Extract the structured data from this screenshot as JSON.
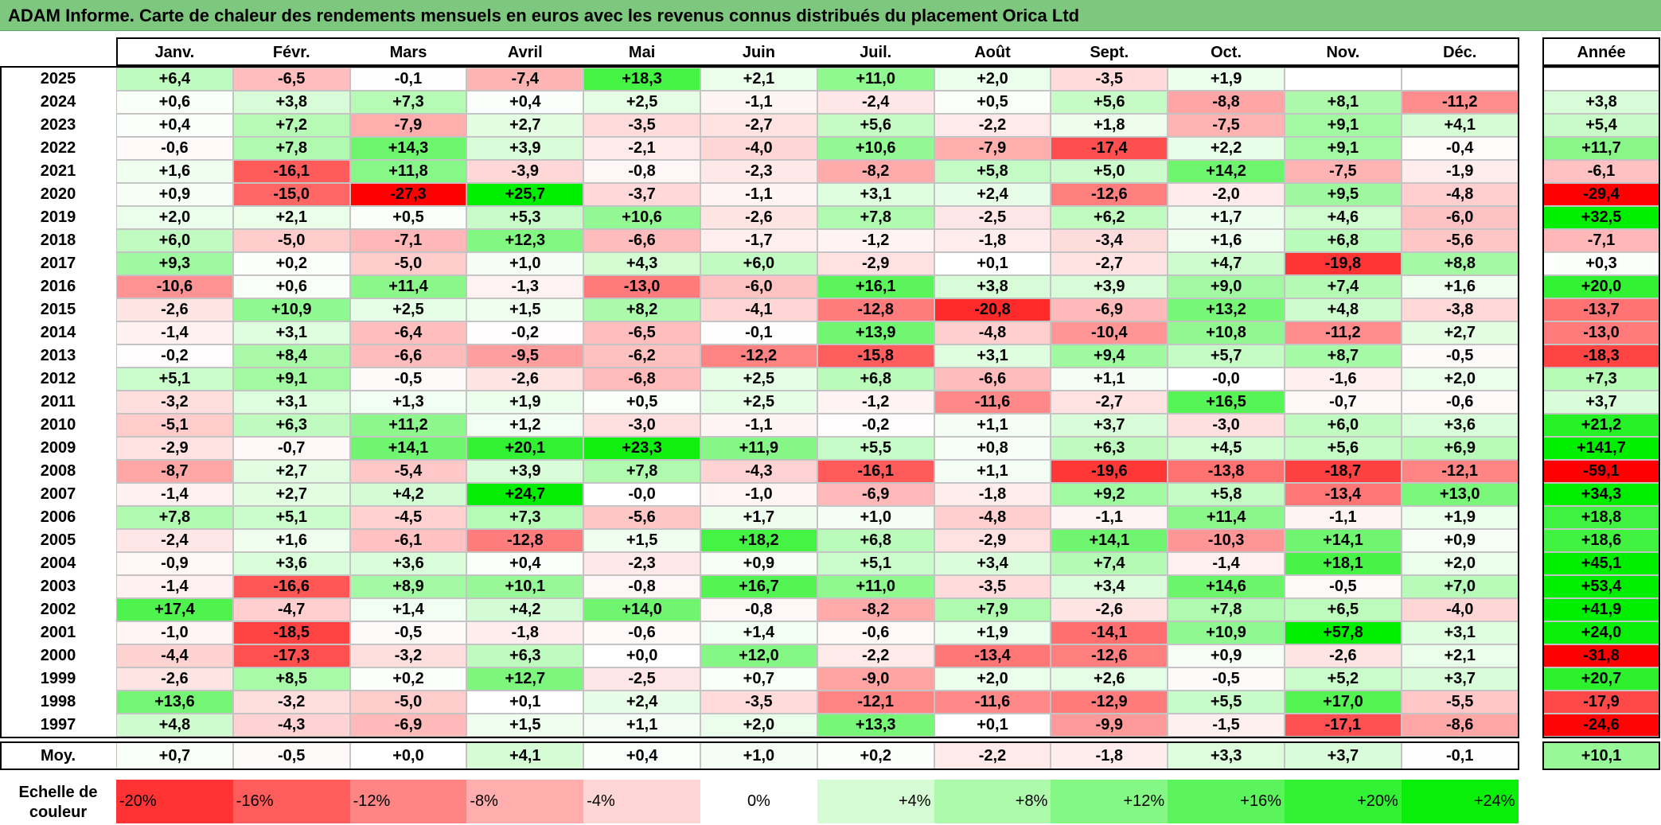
{
  "title": "ADAM Informe. Carte de chaleur des rendements mensuels en euros avec les revenus connus distribués du placement Orica Ltd",
  "chart_data": {
    "type": "heatmap",
    "title": "ADAM Informe. Carte de chaleur des rendements mensuels en euros avec les revenus connus distribués du placement Orica Ltd",
    "columns": [
      "Janv.",
      "Févr.",
      "Mars",
      "Avril",
      "Mai",
      "Juin",
      "Juil.",
      "Août",
      "Sept.",
      "Oct.",
      "Nov.",
      "Déc."
    ],
    "annual_header": "Année",
    "rows": [
      {
        "label": "2025",
        "values": [
          "+6,4",
          "-6,5",
          "-0,1",
          "-7,4",
          "+18,3",
          "+2,1",
          "+11,0",
          "+2,0",
          "-3,5",
          "+1,9",
          "",
          ""
        ],
        "annual": ""
      },
      {
        "label": "2024",
        "values": [
          "+0,6",
          "+3,8",
          "+7,3",
          "+0,4",
          "+2,5",
          "-1,1",
          "-2,4",
          "+0,5",
          "+5,6",
          "-8,8",
          "+8,1",
          "-11,2"
        ],
        "annual": "+3,8"
      },
      {
        "label": "2023",
        "values": [
          "+0,4",
          "+7,2",
          "-7,9",
          "+2,7",
          "-3,5",
          "-2,7",
          "+5,6",
          "-2,2",
          "+1,8",
          "-7,5",
          "+9,1",
          "+4,1"
        ],
        "annual": "+5,4"
      },
      {
        "label": "2022",
        "values": [
          "-0,6",
          "+7,8",
          "+14,3",
          "+3,9",
          "-2,1",
          "-4,0",
          "+10,6",
          "-7,9",
          "-17,4",
          "+2,2",
          "+9,1",
          "-0,4"
        ],
        "annual": "+11,7"
      },
      {
        "label": "2021",
        "values": [
          "+1,6",
          "-16,1",
          "+11,8",
          "-3,9",
          "-0,8",
          "-2,3",
          "-8,2",
          "+5,8",
          "+5,0",
          "+14,2",
          "-7,5",
          "-1,9"
        ],
        "annual": "-6,1"
      },
      {
        "label": "2020",
        "values": [
          "+0,9",
          "-15,0",
          "-27,3",
          "+25,7",
          "-3,7",
          "-1,1",
          "+3,1",
          "+2,4",
          "-12,6",
          "-2,0",
          "+9,5",
          "-4,8"
        ],
        "annual": "-29,4"
      },
      {
        "label": "2019",
        "values": [
          "+2,0",
          "+2,1",
          "+0,5",
          "+5,3",
          "+10,6",
          "-2,6",
          "+7,8",
          "-2,5",
          "+6,2",
          "+1,7",
          "+4,6",
          "-6,0"
        ],
        "annual": "+32,5"
      },
      {
        "label": "2018",
        "values": [
          "+6,0",
          "-5,0",
          "-7,1",
          "+12,3",
          "-6,6",
          "-1,7",
          "-1,2",
          "-1,8",
          "-3,4",
          "+1,6",
          "+6,8",
          "-5,6"
        ],
        "annual": "-7,1"
      },
      {
        "label": "2017",
        "values": [
          "+9,3",
          "+0,2",
          "-5,0",
          "+1,0",
          "+4,3",
          "+6,0",
          "-2,9",
          "+0,1",
          "-2,7",
          "+4,7",
          "-19,8",
          "+8,8"
        ],
        "annual": "+0,3"
      },
      {
        "label": "2016",
        "values": [
          "-10,6",
          "+0,6",
          "+11,4",
          "-1,3",
          "-13,0",
          "-6,0",
          "+16,1",
          "+3,8",
          "+3,9",
          "+9,0",
          "+7,4",
          "+1,6"
        ],
        "annual": "+20,0"
      },
      {
        "label": "2015",
        "values": [
          "-2,6",
          "+10,9",
          "+2,5",
          "+1,5",
          "+8,2",
          "-4,1",
          "-12,8",
          "-20,8",
          "-6,9",
          "+13,2",
          "+4,8",
          "-3,8"
        ],
        "annual": "-13,7"
      },
      {
        "label": "2014",
        "values": [
          "-1,4",
          "+3,1",
          "-6,4",
          "-0,2",
          "-6,5",
          "-0,1",
          "+13,9",
          "-4,8",
          "-10,4",
          "+10,8",
          "-11,2",
          "+2,7"
        ],
        "annual": "-13,0"
      },
      {
        "label": "2013",
        "values": [
          "-0,2",
          "+8,4",
          "-6,6",
          "-9,5",
          "-6,2",
          "-12,2",
          "-15,8",
          "+3,1",
          "+9,4",
          "+5,7",
          "+8,7",
          "-0,5"
        ],
        "annual": "-18,3"
      },
      {
        "label": "2012",
        "values": [
          "+5,1",
          "+9,1",
          "-0,5",
          "-2,6",
          "-6,8",
          "+2,5",
          "+6,8",
          "-6,6",
          "+1,1",
          "-0,0",
          "-1,6",
          "+2,0"
        ],
        "annual": "+7,3"
      },
      {
        "label": "2011",
        "values": [
          "-3,2",
          "+3,1",
          "+1,3",
          "+1,9",
          "+0,5",
          "+2,5",
          "-1,2",
          "-11,6",
          "-2,7",
          "+16,5",
          "-0,7",
          "-0,6"
        ],
        "annual": "+3,7"
      },
      {
        "label": "2010",
        "values": [
          "-5,1",
          "+6,3",
          "+11,2",
          "+1,2",
          "-3,0",
          "-1,1",
          "-0,2",
          "+1,1",
          "+3,7",
          "-3,0",
          "+6,0",
          "+3,6"
        ],
        "annual": "+21,2"
      },
      {
        "label": "2009",
        "values": [
          "-2,9",
          "-0,7",
          "+14,1",
          "+20,1",
          "+23,3",
          "+11,9",
          "+5,5",
          "+0,8",
          "+6,3",
          "+4,5",
          "+5,6",
          "+6,9"
        ],
        "annual": "+141,7"
      },
      {
        "label": "2008",
        "values": [
          "-8,7",
          "+2,7",
          "-5,4",
          "+3,9",
          "+7,8",
          "-4,3",
          "-16,1",
          "+1,1",
          "-19,6",
          "-13,8",
          "-18,7",
          "-12,1"
        ],
        "annual": "-59,1"
      },
      {
        "label": "2007",
        "values": [
          "-1,4",
          "+2,7",
          "+4,2",
          "+24,7",
          "-0,0",
          "-1,0",
          "-6,9",
          "-1,8",
          "+9,2",
          "+5,8",
          "-13,4",
          "+13,0"
        ],
        "annual": "+34,3"
      },
      {
        "label": "2006",
        "values": [
          "+7,8",
          "+5,1",
          "-4,5",
          "+7,3",
          "-5,6",
          "+1,7",
          "+1,0",
          "-4,8",
          "-1,1",
          "+11,4",
          "-1,1",
          "+1,9"
        ],
        "annual": "+18,8"
      },
      {
        "label": "2005",
        "values": [
          "-2,4",
          "+1,6",
          "-6,1",
          "-12,8",
          "+1,5",
          "+18,2",
          "+6,8",
          "-2,9",
          "+14,1",
          "-10,3",
          "+14,1",
          "+0,9"
        ],
        "annual": "+18,6"
      },
      {
        "label": "2004",
        "values": [
          "-0,9",
          "+3,6",
          "+3,6",
          "+0,4",
          "-2,3",
          "+0,9",
          "+5,1",
          "+3,4",
          "+7,4",
          "-1,4",
          "+18,1",
          "+2,0"
        ],
        "annual": "+45,1"
      },
      {
        "label": "2003",
        "values": [
          "-1,4",
          "-16,6",
          "+8,9",
          "+10,1",
          "-0,8",
          "+16,7",
          "+11,0",
          "-3,5",
          "+3,4",
          "+14,6",
          "-0,5",
          "+7,0"
        ],
        "annual": "+53,4"
      },
      {
        "label": "2002",
        "values": [
          "+17,4",
          "-4,7",
          "+1,4",
          "+4,2",
          "+14,0",
          "-0,8",
          "-8,2",
          "+7,9",
          "-2,6",
          "+7,8",
          "+6,5",
          "-4,0"
        ],
        "annual": "+41,9"
      },
      {
        "label": "2001",
        "values": [
          "-1,0",
          "-18,5",
          "-0,5",
          "-1,8",
          "-0,6",
          "+1,4",
          "-0,6",
          "+1,9",
          "-14,1",
          "+10,9",
          "+57,8",
          "+3,1"
        ],
        "annual": "+24,0"
      },
      {
        "label": "2000",
        "values": [
          "-4,4",
          "-17,3",
          "-3,2",
          "+6,3",
          "+0,0",
          "+12,0",
          "-2,2",
          "-13,4",
          "-12,6",
          "+0,9",
          "-2,6",
          "+2,1"
        ],
        "annual": "-31,8"
      },
      {
        "label": "1999",
        "values": [
          "-2,6",
          "+8,5",
          "+0,2",
          "+12,7",
          "-2,5",
          "+0,7",
          "-9,0",
          "+2,0",
          "+2,6",
          "-0,5",
          "+5,2",
          "+3,7"
        ],
        "annual": "+20,7"
      },
      {
        "label": "1998",
        "values": [
          "+13,6",
          "-3,2",
          "-5,0",
          "+0,1",
          "+2,4",
          "-3,5",
          "-12,1",
          "-11,6",
          "-12,9",
          "+5,5",
          "+17,0",
          "-5,5"
        ],
        "annual": "-17,9"
      },
      {
        "label": "1997",
        "values": [
          "+4,8",
          "-4,3",
          "-6,9",
          "+1,5",
          "+1,1",
          "+2,0",
          "+13,3",
          "+0,1",
          "-9,9",
          "-1,5",
          "-17,1",
          "-8,6"
        ],
        "annual": "-24,6"
      }
    ],
    "average": {
      "label": "Moy.",
      "values": [
        "+0,7",
        "-0,5",
        "+0,0",
        "+4,1",
        "+0,4",
        "+1,0",
        "+0,2",
        "-2,2",
        "-1,8",
        "+3,3",
        "+3,7",
        "-0,1"
      ],
      "annual": "+10,1"
    },
    "legend": {
      "label": "Echelle de\ncouleur",
      "steps": [
        {
          "text": "-20%",
          "value": -20
        },
        {
          "text": "-16%",
          "value": -16
        },
        {
          "text": "-12%",
          "value": -12
        },
        {
          "text": "-8%",
          "value": -8
        },
        {
          "text": "-4%",
          "value": -4
        },
        {
          "text": "0%",
          "value": 0
        },
        {
          "text": "+4%",
          "value": 4
        },
        {
          "text": "+8%",
          "value": 8
        },
        {
          "text": "+12%",
          "value": 12
        },
        {
          "text": "+16%",
          "value": 16
        },
        {
          "text": "+20%",
          "value": 20
        },
        {
          "text": "+24%",
          "value": 24
        }
      ]
    },
    "color_scale": {
      "negative_max": "#ff0000",
      "neutral": "#ffffff",
      "positive_max": "#00ee00",
      "clip": 25
    }
  }
}
